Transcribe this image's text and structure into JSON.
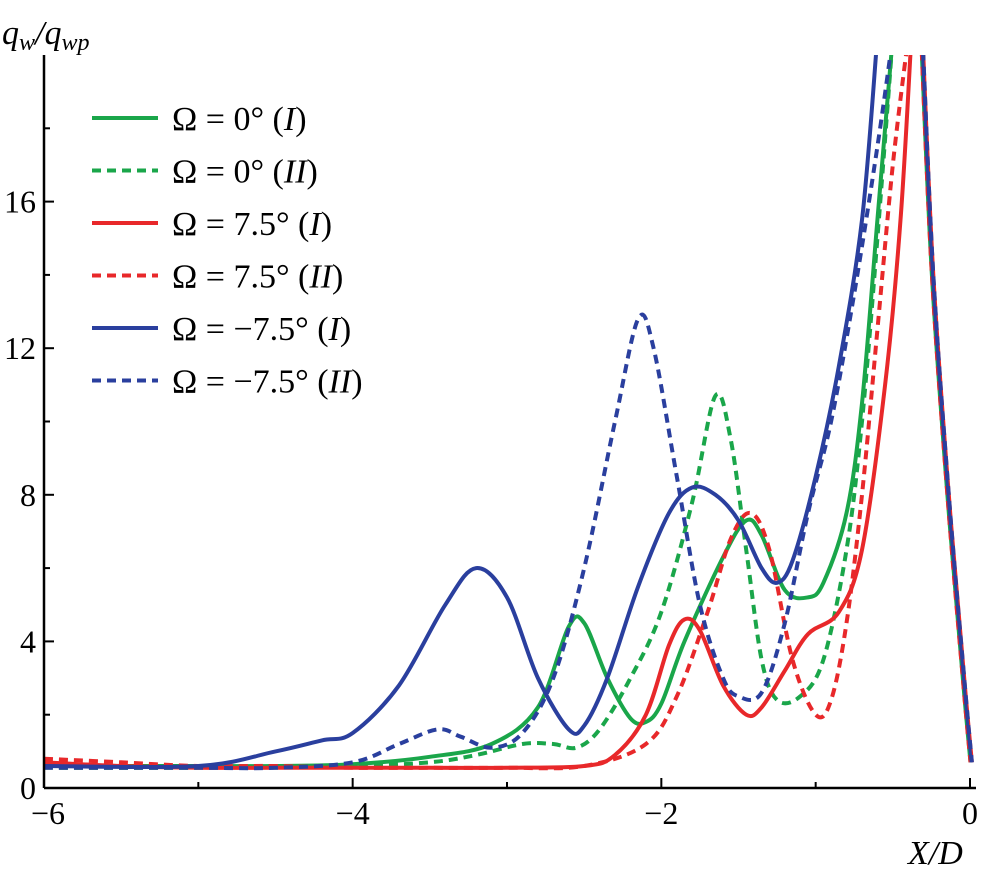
{
  "chart_data": {
    "type": "line",
    "title": "",
    "xlabel": "X/D",
    "ylabel": "q_w/q_wp",
    "xlim": [
      -6,
      0
    ],
    "ylim": [
      0,
      20
    ],
    "xticks": [
      -6,
      -4,
      -2,
      0
    ],
    "xtick_labels": [
      "−6",
      "−4",
      "−2",
      "0"
    ],
    "yticks": [
      0,
      4,
      8,
      12,
      16
    ],
    "ytick_labels": [
      "0",
      "4",
      "8",
      "12",
      "16"
    ],
    "legend_position": "top-left",
    "grid": false,
    "series": [
      {
        "name": "Ω = 0° (I)",
        "label_main": "Ω = 0° (",
        "label_italic": "I",
        "label_end": ")",
        "color": "#1aa64a",
        "dash": "solid",
        "points": [
          [
            -6,
            0.6
          ],
          [
            -5,
            0.6
          ],
          [
            -4.5,
            0.6
          ],
          [
            -4,
            0.65
          ],
          [
            -3.5,
            0.85
          ],
          [
            -3.1,
            1.2
          ],
          [
            -2.8,
            2.2
          ],
          [
            -2.6,
            4.4
          ],
          [
            -2.5,
            4.5
          ],
          [
            -2.35,
            3.0
          ],
          [
            -2.2,
            1.9
          ],
          [
            -2.1,
            1.8
          ],
          [
            -2.0,
            2.3
          ],
          [
            -1.85,
            4.0
          ],
          [
            -1.6,
            6.3
          ],
          [
            -1.45,
            7.3
          ],
          [
            -1.35,
            6.9
          ],
          [
            -1.2,
            5.4
          ],
          [
            -1.05,
            5.2
          ],
          [
            -0.95,
            5.6
          ],
          [
            -0.8,
            7.5
          ],
          [
            -0.7,
            10.5
          ],
          [
            -0.6,
            15.5
          ],
          [
            -0.5,
            20.5
          ]
        ]
      },
      {
        "name": "Ω = 0° (II)",
        "label_main": "Ω = 0° (",
        "label_italic": "II",
        "label_end": ")",
        "color": "#1aa64a",
        "dash": "dashed",
        "points": [
          [
            -6,
            0.55
          ],
          [
            -5,
            0.55
          ],
          [
            -4.5,
            0.6
          ],
          [
            -4,
            0.6
          ],
          [
            -3.5,
            0.7
          ],
          [
            -3.2,
            0.9
          ],
          [
            -2.9,
            1.2
          ],
          [
            -2.7,
            1.2
          ],
          [
            -2.55,
            1.1
          ],
          [
            -2.4,
            1.6
          ],
          [
            -2.2,
            3.0
          ],
          [
            -2.0,
            4.8
          ],
          [
            -1.8,
            7.8
          ],
          [
            -1.65,
            10.7
          ],
          [
            -1.55,
            9.5
          ],
          [
            -1.45,
            6.5
          ],
          [
            -1.35,
            3.5
          ],
          [
            -1.25,
            2.4
          ],
          [
            -1.1,
            2.5
          ],
          [
            -0.95,
            3.5
          ],
          [
            -0.8,
            6.5
          ],
          [
            -0.7,
            10.0
          ],
          [
            -0.6,
            15.0
          ],
          [
            -0.5,
            20.5
          ]
        ]
      },
      {
        "name": "Ω = 7.5° (I)",
        "label_main": "Ω = 7.5° (",
        "label_italic": "I",
        "label_end": ")",
        "color": "#e8282a",
        "dash": "solid",
        "points": [
          [
            -6,
            0.7
          ],
          [
            -5.5,
            0.6
          ],
          [
            -5,
            0.55
          ],
          [
            -4.5,
            0.55
          ],
          [
            -4,
            0.55
          ],
          [
            -3.5,
            0.55
          ],
          [
            -3.0,
            0.55
          ],
          [
            -2.5,
            0.6
          ],
          [
            -2.3,
            0.9
          ],
          [
            -2.1,
            2.0
          ],
          [
            -1.95,
            3.9
          ],
          [
            -1.85,
            4.6
          ],
          [
            -1.75,
            4.3
          ],
          [
            -1.6,
            2.8
          ],
          [
            -1.45,
            2.0
          ],
          [
            -1.35,
            2.2
          ],
          [
            -1.2,
            3.2
          ],
          [
            -1.05,
            4.2
          ],
          [
            -0.85,
            4.8
          ],
          [
            -0.7,
            6.5
          ],
          [
            -0.55,
            11.0
          ],
          [
            -0.45,
            15.5
          ],
          [
            -0.38,
            20.5
          ]
        ]
      },
      {
        "name": "Ω = 7.5° (II)",
        "label_main": "Ω = 7.5° (",
        "label_italic": "II",
        "label_end": ")",
        "color": "#e8282a",
        "dash": "dashed",
        "points": [
          [
            -6,
            0.8
          ],
          [
            -5.5,
            0.7
          ],
          [
            -5,
            0.6
          ],
          [
            -4.5,
            0.6
          ],
          [
            -4,
            0.55
          ],
          [
            -3.5,
            0.55
          ],
          [
            -3.0,
            0.55
          ],
          [
            -2.5,
            0.6
          ],
          [
            -2.1,
            1.2
          ],
          [
            -1.9,
            2.5
          ],
          [
            -1.7,
            4.8
          ],
          [
            -1.55,
            6.8
          ],
          [
            -1.42,
            7.5
          ],
          [
            -1.3,
            6.5
          ],
          [
            -1.15,
            3.5
          ],
          [
            -1.0,
            2.0
          ],
          [
            -0.9,
            2.4
          ],
          [
            -0.8,
            4.5
          ],
          [
            -0.7,
            8.0
          ],
          [
            -0.6,
            12.5
          ],
          [
            -0.5,
            17.0
          ],
          [
            -0.4,
            20.5
          ]
        ]
      },
      {
        "name": "Ω = −7.5° (I)",
        "label_main": "Ω = −7.5° (",
        "label_italic": "I",
        "label_end": ")",
        "color": "#2a3f9e",
        "dash": "solid",
        "points": [
          [
            -6,
            0.6
          ],
          [
            -5,
            0.6
          ],
          [
            -4.5,
            1.0
          ],
          [
            -4.2,
            1.3
          ],
          [
            -4.0,
            1.5
          ],
          [
            -3.7,
            2.8
          ],
          [
            -3.4,
            5.0
          ],
          [
            -3.2,
            6.0
          ],
          [
            -3.0,
            5.2
          ],
          [
            -2.8,
            3.0
          ],
          [
            -2.6,
            1.6
          ],
          [
            -2.5,
            1.7
          ],
          [
            -2.35,
            3.0
          ],
          [
            -2.15,
            5.5
          ],
          [
            -1.95,
            7.5
          ],
          [
            -1.8,
            8.2
          ],
          [
            -1.65,
            8.0
          ],
          [
            -1.5,
            7.3
          ],
          [
            -1.35,
            6.0
          ],
          [
            -1.25,
            5.6
          ],
          [
            -1.15,
            6.2
          ],
          [
            -1.0,
            8.5
          ],
          [
            -0.85,
            11.5
          ],
          [
            -0.7,
            15.5
          ],
          [
            -0.6,
            20.5
          ]
        ]
      },
      {
        "name": "Ω = −7.5° (II)",
        "label_main": "Ω = −7.5° (",
        "label_italic": "II",
        "label_end": ")",
        "color": "#2a3f9e",
        "dash": "dashed",
        "points": [
          [
            -6,
            0.55
          ],
          [
            -5,
            0.55
          ],
          [
            -4.5,
            0.55
          ],
          [
            -4,
            0.7
          ],
          [
            -3.7,
            1.2
          ],
          [
            -3.45,
            1.6
          ],
          [
            -3.3,
            1.4
          ],
          [
            -3.1,
            1.1
          ],
          [
            -2.9,
            1.5
          ],
          [
            -2.7,
            3.0
          ],
          [
            -2.5,
            6.0
          ],
          [
            -2.3,
            10.0
          ],
          [
            -2.15,
            12.8
          ],
          [
            -2.05,
            12.0
          ],
          [
            -1.9,
            8.5
          ],
          [
            -1.75,
            5.0
          ],
          [
            -1.6,
            3.0
          ],
          [
            -1.5,
            2.5
          ],
          [
            -1.35,
            2.6
          ],
          [
            -1.2,
            4.5
          ],
          [
            -1.05,
            7.5
          ],
          [
            -0.9,
            10.0
          ],
          [
            -0.75,
            13.5
          ],
          [
            -0.6,
            17.5
          ],
          [
            -0.5,
            20.5
          ]
        ]
      }
    ]
  }
}
